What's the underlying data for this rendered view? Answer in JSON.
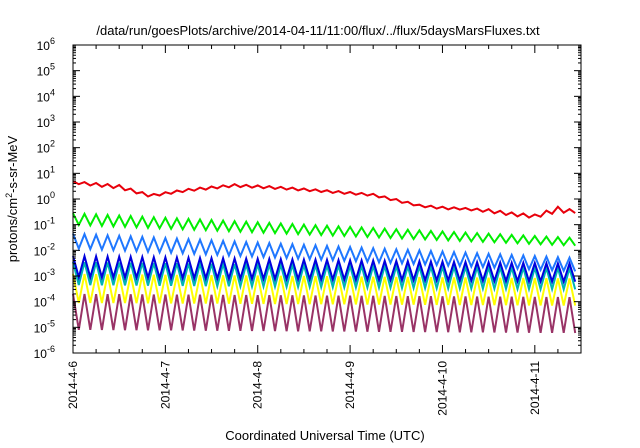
{
  "chart_data": {
    "type": "line",
    "title": "/data/run/goesPlots/archive/2014-04-11/11:00/flux/../flux/5daysMarsFluxes.txt",
    "xlabel": "Coordinated Universal Time (UTC)",
    "ylabel_parts": {
      "base": "protons/cm",
      "sup": "2",
      "rest": "-s-sr-MeV"
    },
    "x_scale": "time",
    "y_scale": "log",
    "xlim": [
      "2014-04-06",
      "2014-04-11T12:00"
    ],
    "ylim": [
      1e-06,
      1000000.0
    ],
    "x_ticks": [
      "2014-4-6",
      "2014-4-7",
      "2014-4-8",
      "2014-4-9",
      "2014-4-10",
      "2014-4-11"
    ],
    "y_ticks": [
      {
        "value": 1e-06,
        "base": "10",
        "exp": "-6"
      },
      {
        "value": 1e-05,
        "base": "10",
        "exp": "-5"
      },
      {
        "value": 0.0001,
        "base": "10",
        "exp": "-4"
      },
      {
        "value": 0.001,
        "base": "10",
        "exp": "-3"
      },
      {
        "value": 0.01,
        "base": "10",
        "exp": "-2"
      },
      {
        "value": 0.1,
        "base": "10",
        "exp": "-1"
      },
      {
        "value": 1,
        "base": "10",
        "exp": "0"
      },
      {
        "value": 10.0,
        "base": "10",
        "exp": "1"
      },
      {
        "value": 100.0,
        "base": "10",
        "exp": "2"
      },
      {
        "value": 1000.0,
        "base": "10",
        "exp": "3"
      },
      {
        "value": 10000.0,
        "base": "10",
        "exp": "4"
      },
      {
        "value": 100000.0,
        "base": "10",
        "exp": "5"
      },
      {
        "value": 1000000.0,
        "base": "10",
        "exp": "6"
      }
    ],
    "grid": false,
    "legend": "none",
    "sawtooth_period_hours": 3,
    "series": [
      {
        "color": "#e8000b",
        "x": [
          "2014-04-06T00:00",
          "2014-04-06T12:00",
          "2014-04-06T20:00",
          "2014-04-07T06:00",
          "2014-04-07T18:00",
          "2014-04-08T06:00",
          "2014-04-08T18:00",
          "2014-04-09T06:00",
          "2014-04-09T12:00",
          "2014-04-09T18:00",
          "2014-04-10T00:00",
          "2014-04-10T06:00",
          "2014-04-10T12:00",
          "2014-04-10T18:00",
          "2014-04-11T00:00",
          "2014-04-11T06:00",
          "2014-04-11T11:00"
        ],
        "high": [
          5,
          3.5,
          1.5,
          2.5,
          3.8,
          3,
          2.2,
          1.6,
          1,
          0.6,
          0.5,
          0.45,
          0.4,
          0.3,
          0.25,
          0.5,
          0.35
        ],
        "low": [
          4,
          2.5,
          1.2,
          2,
          3,
          2.4,
          1.8,
          1.3,
          0.8,
          0.5,
          0.4,
          0.38,
          0.3,
          0.22,
          0.18,
          0.3,
          0.28
        ]
      },
      {
        "color": "#00ee00",
        "x": [
          "2014-04-06T00:00",
          "2014-04-11T11:00"
        ],
        "high": [
          0.28,
          0.03
        ],
        "low": [
          0.1,
          0.015
        ]
      },
      {
        "color": "#1f77ff",
        "x": [
          "2014-04-06T00:00",
          "2014-04-11T11:00"
        ],
        "high": [
          0.045,
          0.005
        ],
        "low": [
          0.012,
          0.0015
        ]
      },
      {
        "color": "#0000dd",
        "x": [
          "2014-04-06T00:00",
          "2014-04-11T11:00"
        ],
        "high": [
          0.006,
          0.003
        ],
        "low": [
          0.0009,
          0.0006
        ]
      },
      {
        "color": "#00b4b4",
        "x": [
          "2014-04-06T00:00",
          "2014-04-11T11:00"
        ],
        "high": [
          0.0035,
          0.002
        ],
        "low": [
          0.00045,
          0.0003
        ]
      },
      {
        "color": "#ffff00",
        "x": [
          "2014-04-06T00:00",
          "2014-04-11T11:00"
        ],
        "high": [
          0.0012,
          0.0008
        ],
        "low": [
          9e-05,
          7e-05
        ]
      },
      {
        "color": "#993366",
        "x": [
          "2014-04-06T00:00",
          "2014-04-11T11:00"
        ],
        "high": [
          0.0002,
          0.00015
        ],
        "low": [
          8e-06,
          6e-06
        ]
      }
    ]
  }
}
